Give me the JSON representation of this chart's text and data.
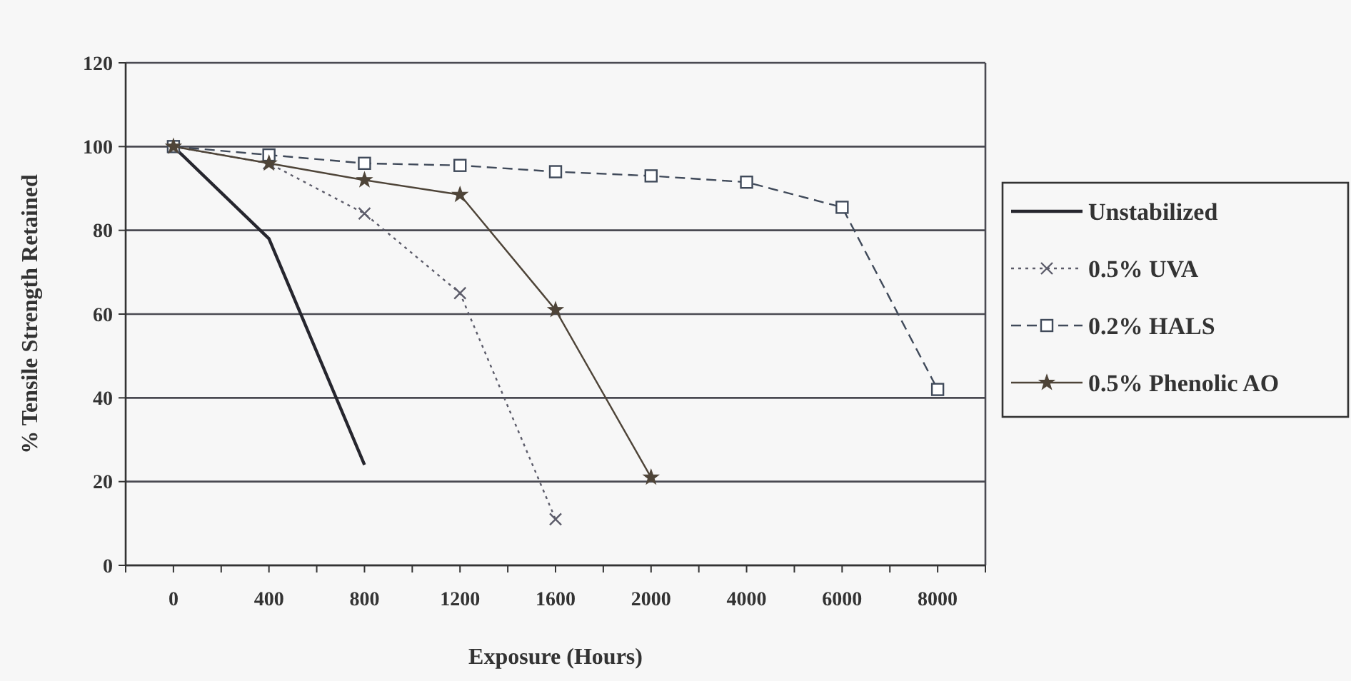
{
  "chart_data": {
    "type": "line",
    "xlabel": "Exposure (Hours)",
    "ylabel": "% Tensile Strength Retained",
    "categories": [
      "0",
      "400",
      "800",
      "1200",
      "1600",
      "2000",
      "4000",
      "6000",
      "8000"
    ],
    "series": [
      {
        "name": "Unstabilized",
        "color": "#26262e",
        "line_style": "solid",
        "marker": "none",
        "values": [
          100,
          78,
          24,
          null,
          null,
          null,
          null,
          null,
          null
        ]
      },
      {
        "name": "0.5% UVA",
        "color": "#5c5c6a",
        "line_style": "dotted",
        "marker": "cross",
        "values": [
          100,
          96,
          84,
          65,
          11,
          null,
          null,
          null,
          null
        ]
      },
      {
        "name": "0.2% HALS",
        "color": "#404a5a",
        "line_style": "dashed",
        "marker": "square",
        "values": [
          100,
          98,
          96,
          95.5,
          94,
          93,
          91.5,
          85.5,
          42
        ]
      },
      {
        "name": "0.5% Phenolic AO",
        "color": "#4e4438",
        "line_style": "solid",
        "marker": "star",
        "values": [
          100,
          96,
          92,
          88.5,
          61,
          21,
          null,
          null,
          null
        ]
      }
    ],
    "ylim": [
      0,
      120
    ],
    "yticks": [
      0,
      20,
      40,
      60,
      80,
      100,
      120
    ],
    "grid": "y",
    "legend": "right"
  }
}
